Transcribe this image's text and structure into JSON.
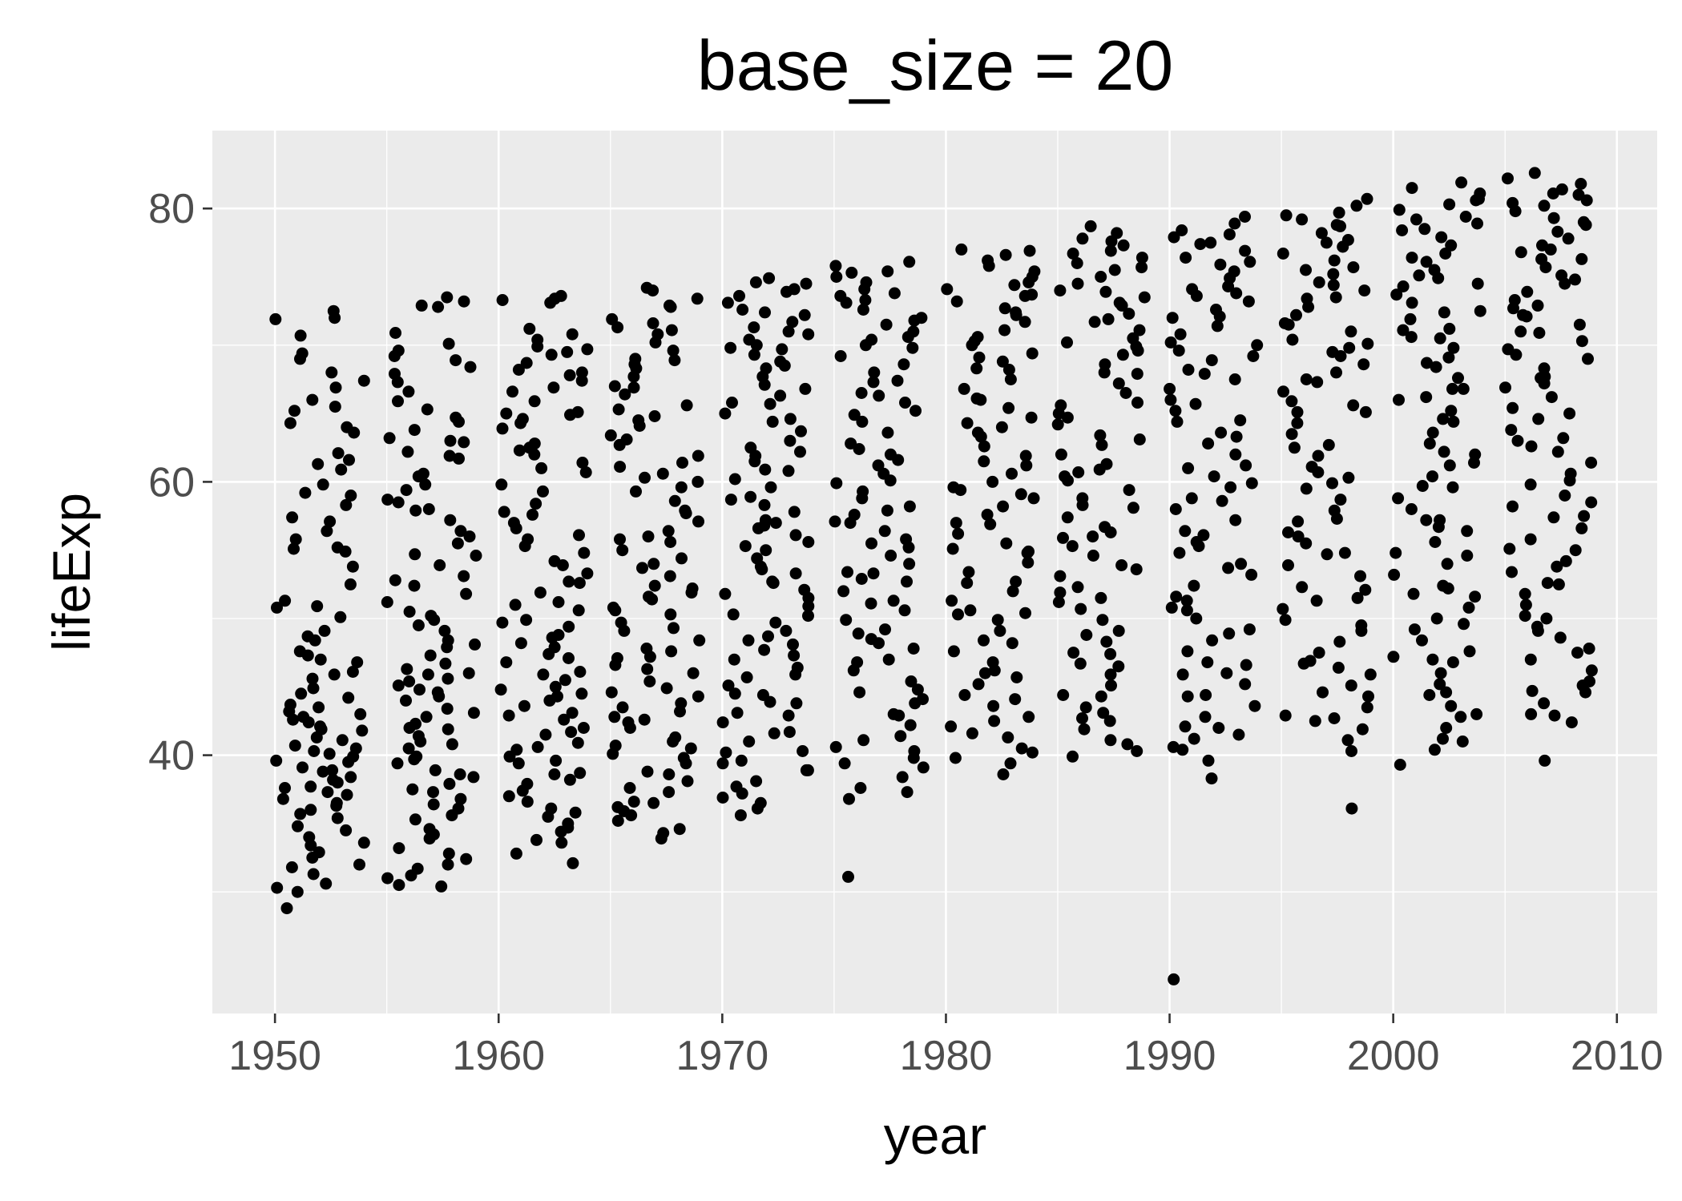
{
  "chart_data": {
    "type": "scatter",
    "title": "base_size = 20",
    "xlabel": "year",
    "ylabel": "lifeExp",
    "xlim": [
      1947.2,
      2011.8
    ],
    "ylim": [
      21.1,
      85.7
    ],
    "x_ticks": [
      1950,
      1960,
      1970,
      1980,
      1990,
      2000,
      2010
    ],
    "x_tick_labels": [
      "1950",
      "1960",
      "1970",
      "1980",
      "1990",
      "2000",
      "2010"
    ],
    "y_ticks": [
      40,
      60,
      80
    ],
    "y_tick_labels": [
      "40",
      "60",
      "80"
    ],
    "grid": true,
    "background": "#ebebeb",
    "point_color": "#000000",
    "jitter": true,
    "groups": [
      {
        "year_min": 1950,
        "year_max": 1954,
        "values": [
          72.5,
          69.4,
          68.0,
          67.4,
          66.9,
          65.5,
          64.3,
          63.6,
          62.1,
          61.6,
          60.9,
          59.2,
          58.3,
          57.4,
          56.4,
          55.8,
          55.1,
          54.9,
          53.8,
          52.5,
          51.3,
          50.9,
          50.1,
          48.7,
          47.6,
          47.3,
          46.8,
          46.1,
          45.6,
          44.9,
          44.2,
          43.7,
          43.2,
          42.8,
          42.4,
          42.1,
          41.8,
          41.3,
          41.1,
          40.7,
          40.3,
          39.9,
          39.5,
          39.1,
          38.8,
          38.4,
          38.0,
          37.6,
          37.3,
          36.8,
          36.5,
          36.0,
          35.4,
          34.8,
          34.0,
          33.4,
          32.5,
          32.0,
          31.3,
          30.3,
          30.0,
          28.8,
          72.0,
          71.9,
          70.7,
          69.0,
          66.0,
          65.2,
          64.0,
          61.3,
          59.8,
          59.0,
          57.1,
          55.2,
          50.8,
          49.1,
          48.4,
          47.0,
          45.9,
          44.5,
          43.5,
          43.0,
          42.6,
          41.9,
          40.5,
          40.1,
          39.6,
          38.9,
          38.2,
          37.7,
          37.1,
          36.3,
          35.7,
          34.5,
          33.6,
          32.9,
          31.8,
          30.6
        ]
      },
      {
        "year_min": 1955,
        "year_max": 1959,
        "values": [
          73.5,
          73.2,
          72.8,
          70.1,
          69.2,
          68.4,
          67.9,
          66.6,
          65.3,
          64.4,
          63.8,
          62.9,
          62.2,
          61.7,
          60.6,
          59.8,
          58.7,
          57.9,
          57.2,
          56.4,
          55.5,
          54.6,
          53.9,
          53.1,
          52.4,
          51.2,
          50.5,
          49.9,
          49.1,
          48.4,
          47.9,
          47.3,
          46.7,
          46.0,
          45.6,
          45.1,
          44.6,
          44.0,
          43.4,
          42.8,
          42.3,
          41.9,
          41.4,
          41.0,
          40.5,
          39.9,
          39.4,
          38.9,
          38.4,
          37.9,
          37.3,
          36.8,
          36.1,
          35.3,
          34.6,
          33.9,
          33.2,
          32.4,
          31.7,
          31.0,
          30.4,
          72.9,
          70.9,
          69.6,
          67.3,
          65.9,
          64.7,
          63.0,
          61.9,
          60.4,
          59.4,
          58.0,
          56.0,
          54.7,
          52.8,
          51.8,
          49.5,
          48.1,
          46.3,
          45.4,
          44.3,
          43.1,
          42.0,
          40.8,
          39.7,
          38.6,
          37.5,
          36.4,
          35.6,
          34.2,
          32.8,
          32.0,
          31.2,
          30.5,
          68.9,
          63.2,
          58.5,
          50.2,
          45.9,
          44.8
        ]
      },
      {
        "year_min": 1960,
        "year_max": 1964,
        "values": [
          73.6,
          73.4,
          73.1,
          71.2,
          70.4,
          69.9,
          69.3,
          68.7,
          68.0,
          67.4,
          66.9,
          65.9,
          65.1,
          64.6,
          63.9,
          62.8,
          62.0,
          61.4,
          60.7,
          59.8,
          58.4,
          57.6,
          57.0,
          56.1,
          55.3,
          54.8,
          53.9,
          53.3,
          52.7,
          51.9,
          51.2,
          50.6,
          49.9,
          49.4,
          48.6,
          47.9,
          47.4,
          46.8,
          46.1,
          45.5,
          44.8,
          44.3,
          43.6,
          43.1,
          42.6,
          42.0,
          41.5,
          40.9,
          40.4,
          39.9,
          39.4,
          38.7,
          38.2,
          37.4,
          36.6,
          35.8,
          35.0,
          34.4,
          33.6,
          32.8,
          32.1,
          70.8,
          69.5,
          68.2,
          66.6,
          65.0,
          64.3,
          62.5,
          61.0,
          59.3,
          57.8,
          55.8,
          54.2,
          52.6,
          51.0,
          49.7,
          48.2,
          47.1,
          45.9,
          45.0,
          44.0,
          42.9,
          41.7,
          40.6,
          39.6,
          38.6,
          37.9,
          37.0,
          36.1,
          35.5,
          34.7,
          33.8,
          73.3,
          69.7,
          67.8,
          64.9,
          62.3,
          56.6,
          48.8,
          44.5
        ]
      },
      {
        "year_min": 1965,
        "year_max": 1969,
        "values": [
          74.2,
          74.0,
          73.4,
          72.8,
          71.6,
          71.1,
          70.8,
          70.2,
          69.6,
          68.9,
          68.3,
          67.7,
          67.0,
          66.4,
          65.6,
          64.8,
          64.1,
          63.4,
          62.7,
          61.9,
          61.4,
          60.6,
          60.0,
          59.6,
          58.6,
          57.9,
          57.1,
          56.4,
          55.6,
          55.0,
          54.4,
          53.7,
          53.1,
          52.4,
          51.9,
          51.4,
          50.8,
          50.3,
          49.7,
          49.1,
          48.4,
          47.8,
          47.2,
          46.6,
          46.0,
          45.4,
          44.9,
          44.3,
          43.8,
          43.2,
          42.6,
          42.0,
          41.3,
          40.7,
          40.1,
          39.4,
          38.8,
          38.1,
          37.3,
          36.6,
          35.9,
          35.2,
          34.3,
          33.9,
          72.9,
          71.3,
          69.0,
          66.9,
          65.3,
          63.1,
          61.1,
          59.3,
          57.7,
          55.8,
          54.0,
          52.2,
          50.6,
          49.3,
          47.6,
          46.3,
          44.6,
          43.5,
          42.4,
          41.0,
          39.8,
          38.6,
          37.6,
          36.5,
          35.6,
          34.6,
          71.9,
          68.6,
          64.5,
          60.3,
          56.0,
          51.6,
          47.1,
          42.8,
          40.5,
          36.2
        ]
      },
      {
        "year_min": 1970,
        "year_max": 1974,
        "values": [
          74.9,
          74.5,
          74.1,
          73.6,
          73.1,
          72.6,
          72.2,
          71.7,
          71.3,
          70.8,
          70.4,
          69.8,
          69.3,
          68.8,
          68.3,
          67.7,
          67.1,
          66.3,
          65.7,
          65.0,
          64.4,
          63.7,
          63.0,
          62.2,
          61.5,
          60.9,
          60.2,
          59.6,
          58.9,
          58.3,
          57.8,
          57.2,
          56.6,
          56.1,
          55.6,
          55.0,
          54.4,
          53.8,
          53.3,
          52.7,
          52.1,
          51.5,
          50.9,
          50.3,
          49.7,
          49.1,
          48.4,
          47.7,
          47.0,
          46.4,
          45.7,
          45.1,
          44.5,
          43.8,
          43.1,
          42.4,
          41.7,
          41.0,
          40.3,
          39.6,
          38.9,
          38.1,
          37.2,
          36.5,
          35.6,
          36.1,
          73.9,
          72.4,
          71.0,
          69.7,
          68.5,
          66.8,
          64.6,
          62.5,
          60.8,
          58.7,
          57.0,
          55.3,
          53.6,
          51.8,
          50.2,
          48.7,
          47.3,
          45.9,
          44.4,
          42.9,
          41.6,
          40.2,
          38.9,
          37.7,
          36.9,
          74.6,
          70.0,
          65.8,
          61.9,
          56.8,
          52.6,
          48.1,
          43.9,
          39.4
        ]
      },
      {
        "year_min": 1975,
        "year_max": 1979,
        "values": [
          76.1,
          75.8,
          75.4,
          75.0,
          74.6,
          74.1,
          73.6,
          73.1,
          72.6,
          72.0,
          71.5,
          71.0,
          70.4,
          69.8,
          69.2,
          68.6,
          68.0,
          67.3,
          66.5,
          65.8,
          65.2,
          64.4,
          63.6,
          62.8,
          62.0,
          61.2,
          60.6,
          59.9,
          59.3,
          58.8,
          58.2,
          57.6,
          57.0,
          56.4,
          55.8,
          55.2,
          54.6,
          54.0,
          53.4,
          52.7,
          52.0,
          51.3,
          50.6,
          49.9,
          49.2,
          48.5,
          47.8,
          47.0,
          46.2,
          45.4,
          44.6,
          43.8,
          43.0,
          42.2,
          41.4,
          40.6,
          39.8,
          39.1,
          38.4,
          37.6,
          36.8,
          31.1,
          75.3,
          73.3,
          71.8,
          70.0,
          67.4,
          64.9,
          62.4,
          60.1,
          57.9,
          55.5,
          53.3,
          51.1,
          48.9,
          46.8,
          44.8,
          42.9,
          41.1,
          39.4,
          73.8,
          70.6,
          66.3,
          61.6,
          57.1,
          52.9,
          48.2,
          44.1,
          40.3,
          37.3
        ]
      },
      {
        "year_min": 1980,
        "year_max": 1984,
        "values": [
          77.0,
          76.6,
          76.2,
          75.8,
          75.4,
          75.0,
          74.6,
          74.1,
          73.7,
          73.2,
          72.7,
          72.2,
          71.7,
          71.1,
          70.6,
          70.0,
          69.4,
          68.8,
          68.2,
          67.5,
          66.8,
          66.1,
          65.4,
          64.7,
          64.0,
          63.3,
          62.6,
          61.9,
          61.2,
          60.6,
          60.0,
          59.4,
          58.8,
          58.2,
          57.6,
          56.9,
          56.2,
          55.5,
          54.8,
          54.1,
          53.4,
          52.7,
          52.0,
          51.3,
          50.6,
          49.9,
          49.1,
          48.4,
          47.6,
          46.8,
          46.0,
          45.2,
          44.4,
          43.6,
          42.8,
          42.1,
          41.3,
          40.5,
          39.8,
          38.6,
          76.9,
          74.4,
          72.4,
          70.3,
          68.3,
          66.0,
          63.6,
          61.5,
          59.1,
          57.0,
          54.9,
          52.6,
          50.4,
          48.2,
          46.2,
          44.1,
          42.5,
          40.2,
          73.6,
          69.1,
          64.3,
          59.6,
          55.1,
          50.3,
          45.7,
          41.6,
          39.4
        ]
      },
      {
        "year_min": 1985,
        "year_max": 1989,
        "values": [
          78.7,
          78.2,
          77.8,
          77.3,
          76.9,
          76.4,
          76.0,
          75.5,
          75.0,
          74.5,
          74.0,
          73.5,
          72.9,
          72.3,
          71.7,
          71.1,
          70.5,
          69.9,
          69.3,
          68.6,
          67.9,
          67.2,
          66.5,
          65.8,
          65.0,
          64.2,
          63.4,
          62.7,
          62.0,
          61.3,
          60.7,
          60.1,
          59.4,
          58.8,
          58.1,
          57.4,
          56.7,
          56.0,
          55.3,
          54.6,
          53.9,
          53.1,
          52.3,
          51.5,
          50.7,
          49.9,
          49.1,
          48.3,
          47.5,
          46.7,
          45.9,
          45.1,
          44.3,
          43.5,
          42.7,
          41.9,
          41.1,
          40.3,
          39.9,
          77.6,
          75.7,
          73.9,
          71.9,
          70.2,
          68.0,
          65.6,
          63.1,
          60.4,
          58.3,
          55.9,
          53.6,
          51.2,
          48.8,
          46.5,
          44.4,
          42.5,
          40.8,
          76.7,
          73.1,
          69.6,
          64.7,
          60.9,
          56.3,
          51.9,
          47.4,
          43.1
        ]
      },
      {
        "year_min": 1990,
        "year_max": 1994,
        "values": [
          79.4,
          78.9,
          78.4,
          77.9,
          77.4,
          76.9,
          76.4,
          75.9,
          75.4,
          74.9,
          74.3,
          73.8,
          73.2,
          72.6,
          72.0,
          71.4,
          70.8,
          70.2,
          69.6,
          68.9,
          68.2,
          67.5,
          66.8,
          66.0,
          65.2,
          64.4,
          63.6,
          62.8,
          62.0,
          61.2,
          60.4,
          59.6,
          58.8,
          58.0,
          57.2,
          56.4,
          55.6,
          54.8,
          54.0,
          53.2,
          52.4,
          51.6,
          50.8,
          50.0,
          49.2,
          48.4,
          47.6,
          46.8,
          46.0,
          45.2,
          44.4,
          43.6,
          42.8,
          42.0,
          41.2,
          40.4,
          39.6,
          38.3,
          23.6,
          78.1,
          76.1,
          74.1,
          72.1,
          70.0,
          67.9,
          65.7,
          63.3,
          61.0,
          58.6,
          56.1,
          53.7,
          51.3,
          48.9,
          46.6,
          44.3,
          42.1,
          40.6,
          77.5,
          73.6,
          69.2,
          64.5,
          59.9,
          55.3,
          50.6,
          45.9,
          41.5
        ]
      },
      {
        "year_min": 1995,
        "year_max": 1999,
        "values": [
          80.7,
          80.2,
          79.7,
          79.2,
          78.7,
          78.2,
          77.7,
          77.2,
          76.7,
          76.2,
          75.7,
          75.2,
          74.6,
          74.0,
          73.4,
          72.8,
          72.2,
          71.6,
          71.0,
          70.4,
          69.8,
          69.2,
          68.6,
          68.0,
          67.3,
          66.6,
          65.9,
          65.1,
          64.3,
          63.5,
          62.7,
          61.9,
          61.1,
          60.3,
          59.5,
          58.7,
          57.9,
          57.1,
          56.3,
          55.5,
          54.7,
          53.9,
          53.1,
          52.3,
          51.5,
          50.7,
          49.9,
          49.1,
          48.3,
          47.5,
          46.7,
          45.9,
          45.1,
          44.3,
          43.5,
          42.7,
          41.9,
          41.1,
          40.3,
          36.1,
          79.5,
          77.5,
          75.5,
          73.5,
          71.5,
          69.5,
          67.5,
          65.1,
          62.5,
          59.9,
          57.3,
          54.8,
          52.1,
          49.5,
          46.9,
          44.6,
          42.5,
          78.8,
          74.4,
          70.1,
          65.6,
          60.7,
          56.0,
          51.3,
          46.4,
          42.9
        ]
      },
      {
        "year_min": 2000,
        "year_max": 2004,
        "values": [
          81.9,
          81.5,
          81.1,
          80.7,
          80.3,
          79.9,
          79.4,
          78.9,
          78.4,
          77.9,
          77.3,
          76.7,
          76.1,
          75.5,
          74.9,
          74.3,
          73.7,
          73.1,
          72.5,
          71.9,
          71.2,
          70.5,
          69.8,
          69.1,
          68.4,
          67.6,
          66.8,
          66.0,
          65.2,
          64.4,
          63.6,
          62.8,
          62.0,
          61.2,
          60.4,
          59.6,
          58.8,
          58.0,
          57.2,
          56.4,
          55.6,
          54.8,
          54.0,
          53.2,
          52.4,
          51.6,
          50.8,
          50.0,
          49.2,
          48.4,
          47.6,
          46.8,
          46.0,
          45.2,
          44.4,
          43.6,
          42.8,
          42.0,
          41.2,
          40.4,
          39.3,
          80.6,
          78.5,
          76.4,
          74.5,
          72.4,
          70.6,
          68.7,
          66.8,
          64.6,
          62.2,
          59.7,
          57.2,
          54.6,
          52.2,
          49.6,
          47.0,
          44.6,
          41.0,
          79.2,
          75.1,
          71.1,
          66.2,
          61.4,
          56.7,
          51.8,
          47.2,
          43.0
        ]
      },
      {
        "year_min": 2005,
        "year_max": 2009,
        "values": [
          82.6,
          82.2,
          81.8,
          81.4,
          81.0,
          80.6,
          80.2,
          79.8,
          79.3,
          78.8,
          78.3,
          77.8,
          77.3,
          76.8,
          76.3,
          75.7,
          75.1,
          74.5,
          73.9,
          73.3,
          72.7,
          72.1,
          71.5,
          70.9,
          70.3,
          69.7,
          69.0,
          68.3,
          67.6,
          66.9,
          66.2,
          65.4,
          64.6,
          63.8,
          63.0,
          62.2,
          61.4,
          60.6,
          59.8,
          59.0,
          58.2,
          57.4,
          56.6,
          55.8,
          55.0,
          54.2,
          53.4,
          52.6,
          51.8,
          51.0,
          50.2,
          49.4,
          48.6,
          47.8,
          47.0,
          46.2,
          45.4,
          44.6,
          43.8,
          43.0,
          42.4,
          39.6,
          81.1,
          79.0,
          77.0,
          74.8,
          72.9,
          71.0,
          69.3,
          67.2,
          65.0,
          62.6,
          60.1,
          57.5,
          55.1,
          52.5,
          50.0,
          47.5,
          45.1,
          42.9,
          80.4,
          76.3,
          72.2,
          67.7,
          63.2,
          58.5,
          53.8,
          49.1,
          44.7
        ]
      }
    ]
  }
}
